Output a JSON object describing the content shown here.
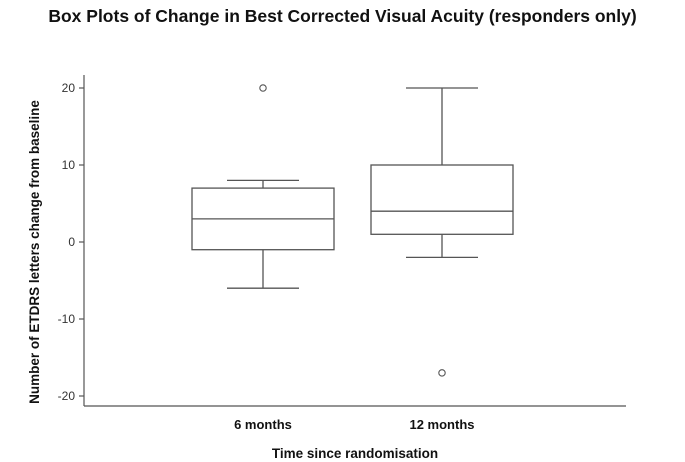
{
  "chart_data": {
    "type": "box",
    "title": "Box Plots of Change in Best Corrected Visual Acuity (responders only)",
    "xlabel": "Time since randomisation",
    "ylabel": "Number of ETDRS letters change from baseline",
    "ylim": [
      -21,
      22
    ],
    "yticks": [
      20,
      10,
      0,
      -10,
      -20
    ],
    "ytick_labels": [
      "20",
      "10",
      "0",
      "-10",
      "-20"
    ],
    "grid": false,
    "categories": [
      "6 months",
      "12 months"
    ],
    "boxes": [
      {
        "category": "6 months",
        "whisker_low": -6,
        "q1": -1,
        "median": 3,
        "q3": 7,
        "whisker_high": 8,
        "outliers": [
          20
        ]
      },
      {
        "category": "12 months",
        "whisker_low": -2,
        "q1": 1,
        "median": 4,
        "q3": 10,
        "whisker_high": 20,
        "outliers": [
          -17
        ]
      }
    ],
    "colors": {
      "stroke": "#555555",
      "box_fill": "#ffffff"
    }
  }
}
